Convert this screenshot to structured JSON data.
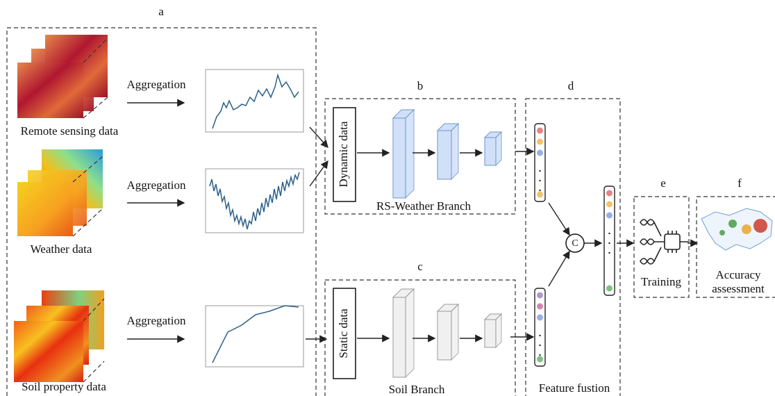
{
  "panels": {
    "a": "a",
    "b": "b",
    "c": "c",
    "d": "d",
    "e": "e",
    "f": "f"
  },
  "inputs": [
    {
      "label": "Remote sensing data",
      "step": "Aggregation"
    },
    {
      "label": "Weather  data",
      "step": "Aggregation"
    },
    {
      "label": "Soil property data",
      "step": "Aggregation"
    }
  ],
  "branches": [
    {
      "input": "Dynamic data",
      "name": "RS-Weather Branch"
    },
    {
      "input": "Static data",
      "name": "Soil Branch"
    }
  ],
  "fusion": {
    "operator": "C",
    "name": "Feature fustion"
  },
  "training": {
    "name": "Training"
  },
  "assessment": {
    "lines": [
      "Accuracy",
      "assessment"
    ]
  }
}
